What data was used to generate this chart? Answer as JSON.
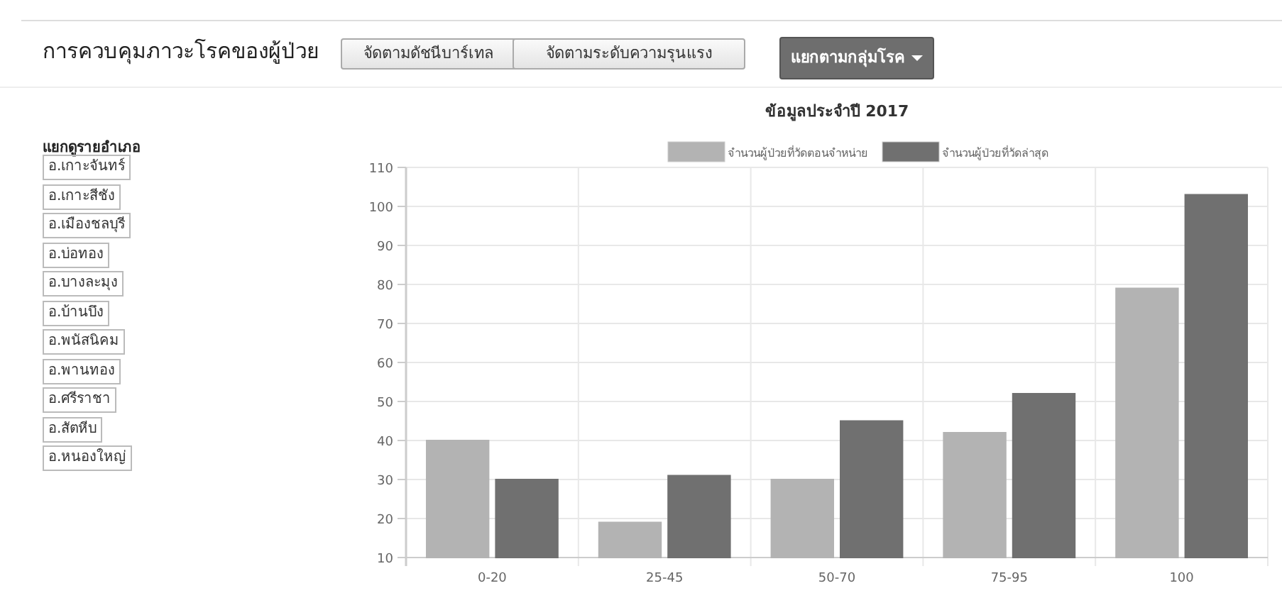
{
  "chart_data": [
    {
      "type": "other",
      "title": "การควบคุมภาวะโรคของผู้ป่วย",
      "annotations": [
        "จัดตามดัชนีบาร์เทล",
        "จัดตามระดับความรุนแรง",
        "แยกตามกลุ่มโรค",
        "แยกดูรายอำเภอ",
        "อ.เกาะจันทร์",
        "อ.เกาะสีชัง",
        "อ.เมืองชลบุรี",
        "อ.บ่อทอง",
        "อ.บางละมุง",
        "อ.บ้านบึง",
        "อ.พนัสนิคม",
        "อ.พานทอง",
        "อ.ศรีราชา",
        "อ.สัตหีบ",
        "อ.หนองใหญ่"
      ]
    },
    {
      "type": "bar",
      "title": "ข้อมูลประจำปี 2017",
      "categories": [
        "0-20",
        "25-45",
        "50-70",
        "75-95",
        "100"
      ],
      "series": [
        {
          "name": "จำนวนผู้ป่วยที่วัดตอนจำหน่าย",
          "color": "#b3b3b3",
          "values": [
            40,
            19,
            30,
            42,
            79
          ]
        },
        {
          "name": "จำนวนผู้ป่วยที่วัดล่าสุด",
          "color": "#707070",
          "values": [
            30,
            31,
            45,
            52,
            103
          ]
        }
      ],
      "ylim": [
        10,
        110
      ],
      "yticks": [
        10,
        20,
        30,
        40,
        50,
        60,
        70,
        80,
        90,
        100,
        110
      ],
      "grid": true,
      "legend": "top"
    }
  ]
}
